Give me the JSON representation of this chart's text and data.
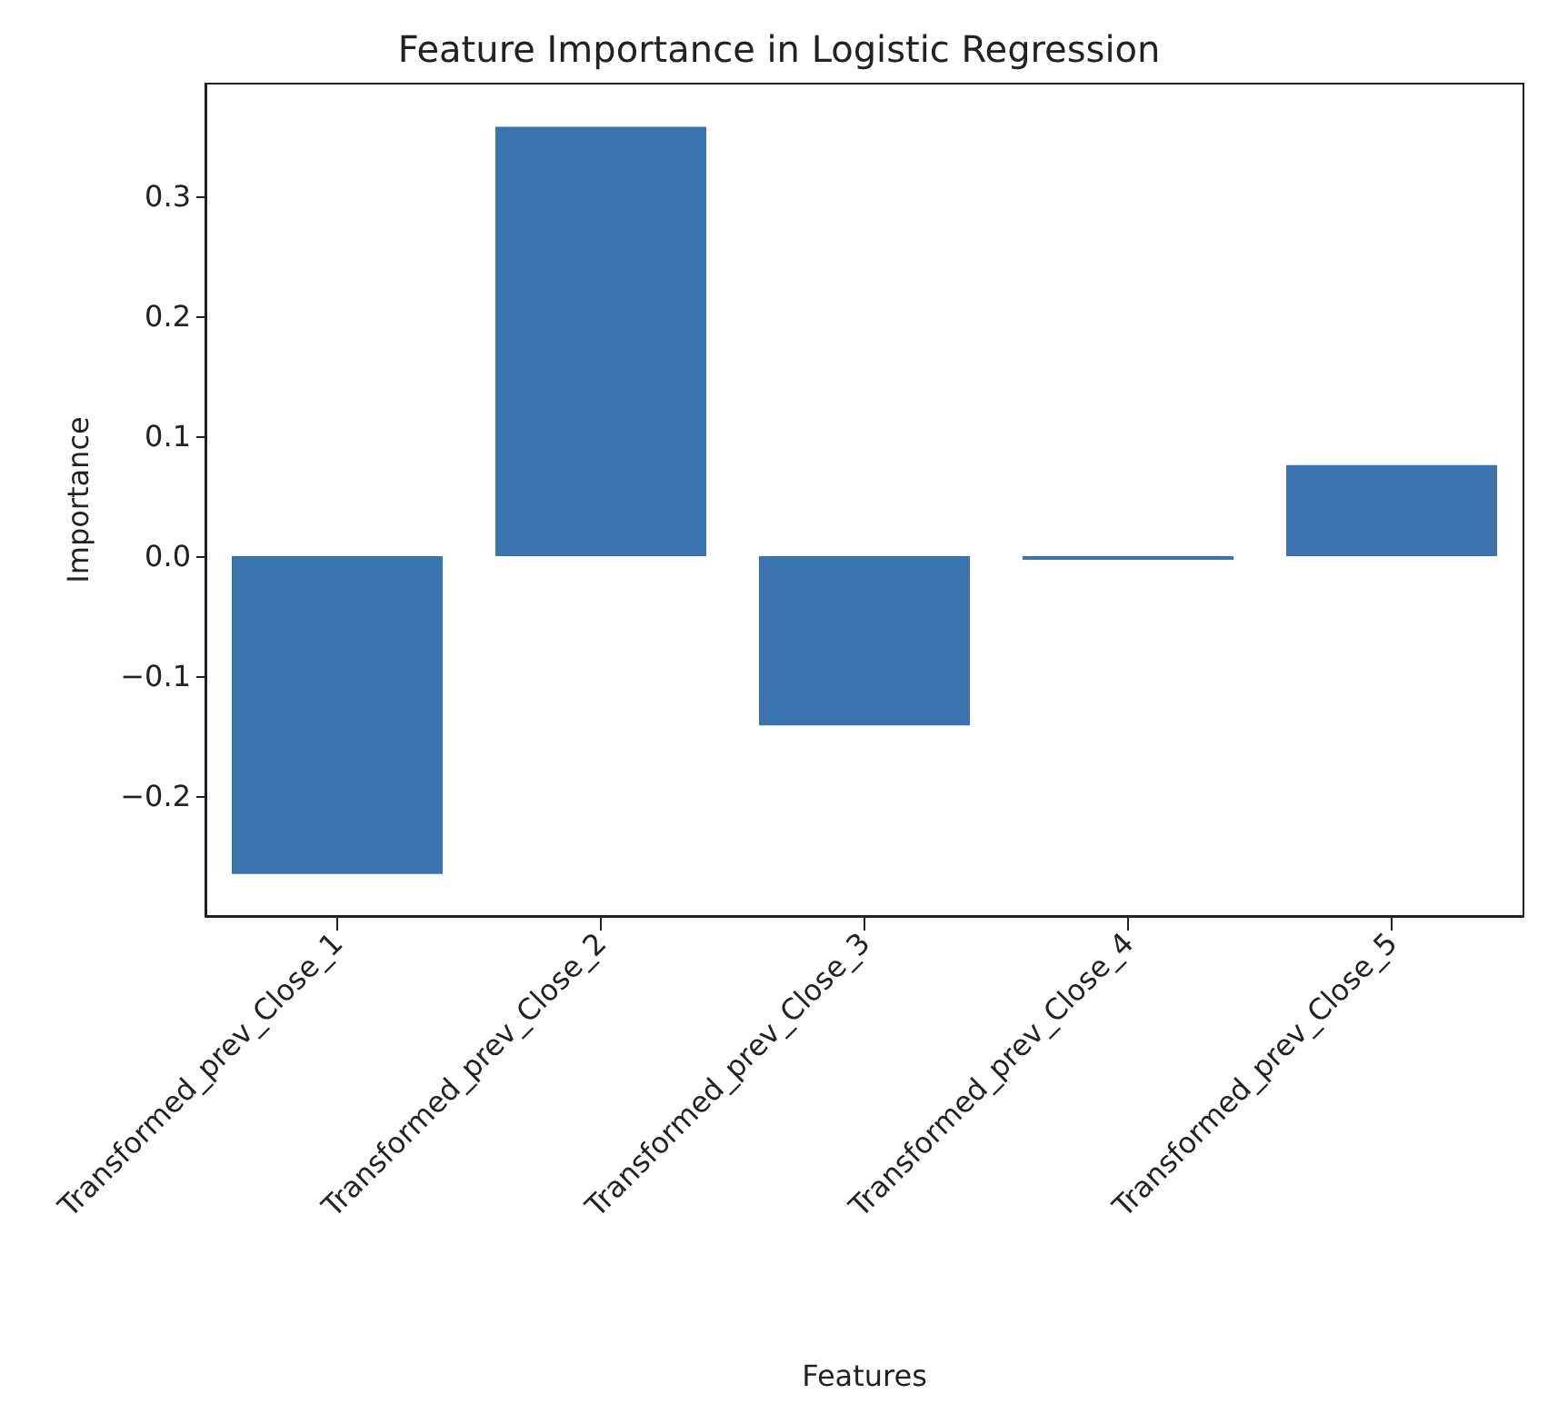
{
  "chart_data": {
    "type": "bar",
    "title": "Feature Importance in Logistic Regression",
    "xlabel": "Features",
    "ylabel": "Importance",
    "categories": [
      "Transformed_prev_Close_1",
      "Transformed_prev_Close_2",
      "Transformed_prev_Close_3",
      "Transformed_prev_Close_4",
      "Transformed_prev_Close_5"
    ],
    "values": [
      -0.265,
      0.358,
      -0.141,
      -0.003,
      0.076
    ],
    "color": "#3a73ae",
    "ylim": [
      -0.3,
      0.394
    ],
    "yticks": [
      {
        "value": -0.2,
        "label": "−0.2"
      },
      {
        "value": -0.1,
        "label": "−0.1"
      },
      {
        "value": 0,
        "label": "0.0"
      },
      {
        "value": 0.1,
        "label": "0.1"
      },
      {
        "value": 0.2,
        "label": "0.2"
      },
      {
        "value": 0.3,
        "label": "0.3"
      }
    ],
    "grid": false
  }
}
